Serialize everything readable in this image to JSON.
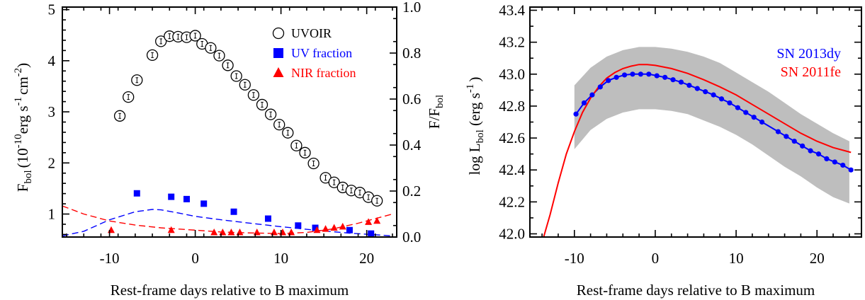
{
  "chart_data": [
    {
      "type": "scatter",
      "xlabel": "Rest-frame days relative to B maximum",
      "ylabel_left": {
        "base": "F",
        "sub": "bol",
        "paren": "(10",
        "exp1": "-10",
        "unit1": "erg s",
        "exp2": "-1",
        "unit2": "cm",
        "exp3": "-2",
        "close": ")"
      },
      "ylabel_right": {
        "base": "F/F",
        "sub": "bol"
      },
      "xlim": [
        -15.5,
        23.5
      ],
      "ylim_left": [
        0.55,
        5.05
      ],
      "ylim_right": [
        0,
        1.0
      ],
      "xticks": [
        -10,
        0,
        10,
        20
      ],
      "xtick_labels": [
        "-10",
        "0",
        "10",
        "20"
      ],
      "yticks_left": [
        1,
        2,
        3,
        4,
        5
      ],
      "ytick_labels_left": [
        "1",
        "2",
        "3",
        "4",
        "5"
      ],
      "yticks_right": [
        0.0,
        0.2,
        0.4,
        0.6,
        0.8,
        1.0
      ],
      "ytick_labels_right": [
        "0.0",
        "0.2",
        "0.4",
        "0.6",
        "0.8",
        "1.0"
      ],
      "legend": {
        "placement": "top-right",
        "items": [
          {
            "label": "UVOIR",
            "marker": "circle",
            "color": "#000000"
          },
          {
            "label": "UV fraction",
            "marker": "square",
            "color": "#0000ff"
          },
          {
            "label": "NIR fraction",
            "marker": "triangle",
            "color": "#ff0000"
          }
        ]
      },
      "series": [
        {
          "name": "UVOIR",
          "axis": "left",
          "marker": "circle-with-errorbar",
          "color": "#000000",
          "x": [
            -8.8,
            -7.8,
            -6.8,
            -5.0,
            -4.0,
            -3.0,
            -2.0,
            -1.0,
            0.0,
            0.8,
            1.8,
            2.8,
            3.8,
            4.8,
            5.8,
            6.8,
            7.8,
            8.8,
            9.8,
            10.8,
            11.8,
            12.8,
            13.8,
            15.2,
            16.2,
            17.2,
            18.2,
            19.2,
            20.2,
            21.2
          ],
          "y": [
            2.92,
            3.29,
            3.62,
            4.11,
            4.38,
            4.48,
            4.47,
            4.46,
            4.49,
            4.33,
            4.25,
            4.1,
            3.91,
            3.7,
            3.53,
            3.33,
            3.14,
            2.95,
            2.75,
            2.59,
            2.34,
            2.2,
            1.99,
            1.71,
            1.62,
            1.52,
            1.46,
            1.42,
            1.33,
            1.26
          ]
        },
        {
          "name": "UV fraction",
          "axis": "right",
          "marker": "square",
          "color": "#0000ff",
          "x": [
            -6.8,
            -2.8,
            -1.0,
            1.0,
            4.5,
            8.5,
            12.0,
            14.0,
            18.0,
            20.5
          ],
          "y": [
            0.19,
            0.175,
            0.165,
            0.145,
            0.11,
            0.08,
            0.05,
            0.04,
            0.03,
            0.015
          ]
        },
        {
          "name": "NIR fraction",
          "axis": "right",
          "marker": "triangle",
          "color": "#ff0000",
          "x": [
            -9.8,
            -2.8,
            2.2,
            3.2,
            4.2,
            5.2,
            7.2,
            9.2,
            10.2,
            11.2,
            14.2,
            15.2,
            16.2,
            17.2,
            20.2,
            21.2
          ],
          "y": [
            0.03,
            0.03,
            0.02,
            0.02,
            0.02,
            0.02,
            0.02,
            0.02,
            0.02,
            0.02,
            0.03,
            0.035,
            0.04,
            0.045,
            0.065,
            0.07
          ]
        },
        {
          "name": "UV fraction model",
          "axis": "right",
          "style": "dashed",
          "color": "#0000ff",
          "x": [
            -15.5,
            -13,
            -10,
            -7,
            -5,
            -4,
            -2,
            0,
            3,
            6,
            10,
            14,
            18,
            21,
            23
          ],
          "y": [
            0.005,
            0.025,
            0.075,
            0.11,
            0.12,
            0.118,
            0.105,
            0.09,
            0.075,
            0.062,
            0.045,
            0.03,
            0.017,
            0.01,
            0.005
          ]
        },
        {
          "name": "NIR fraction model",
          "axis": "right",
          "style": "dashed",
          "color": "#ff0000",
          "x": [
            -15.5,
            -13,
            -10,
            -7,
            -4,
            0,
            3,
            6,
            10,
            13,
            16,
            19,
            21,
            23
          ],
          "y": [
            0.135,
            0.1,
            0.07,
            0.052,
            0.04,
            0.03,
            0.022,
            0.018,
            0.015,
            0.02,
            0.035,
            0.06,
            0.08,
            0.1
          ]
        }
      ]
    },
    {
      "type": "line",
      "xlabel": "Rest-frame days relative to B maximum",
      "ylabel": {
        "pre": "log L",
        "sub": "bol",
        "paren": " (erg s",
        "exp": "-1",
        "close": ")"
      },
      "xlim": [
        -15.5,
        25.5
      ],
      "ylim": [
        41.98,
        43.42
      ],
      "xticks": [
        -10,
        0,
        10,
        20
      ],
      "xtick_labels": [
        "-10",
        "0",
        "10",
        "20"
      ],
      "yticks": [
        42.0,
        42.2,
        42.4,
        42.6,
        42.8,
        43.0,
        43.2,
        43.4
      ],
      "ytick_labels": [
        "42.0",
        "42.2",
        "42.4",
        "42.6",
        "42.8",
        "43.0",
        "43.2",
        "43.4"
      ],
      "legend": {
        "placement": "top-right",
        "items": [
          {
            "label": "SN 2013dy",
            "color": "#0000ff"
          },
          {
            "label": "SN 2011fe",
            "color": "#ff0000"
          }
        ]
      },
      "series": [
        {
          "name": "SN 2013dy",
          "color": "#0000ff",
          "marker": "dot",
          "x": [
            -9.8,
            -8.8,
            -7.8,
            -6.8,
            -5.8,
            -4.8,
            -3.8,
            -2.8,
            -1.8,
            -0.8,
            0.2,
            1.2,
            2.2,
            3.2,
            4.2,
            5.2,
            6.2,
            7.2,
            8.2,
            9.2,
            10.2,
            11.2,
            12.2,
            13.2,
            15.2,
            16.2,
            17.2,
            18.2,
            19.2,
            20.2,
            21.2,
            22.2,
            23.2,
            24.2
          ],
          "y": [
            42.75,
            42.82,
            42.87,
            42.92,
            42.96,
            42.98,
            42.995,
            43.0,
            43.0,
            43.0,
            42.99,
            42.98,
            42.965,
            42.95,
            42.93,
            42.91,
            42.89,
            42.87,
            42.845,
            42.82,
            42.79,
            42.76,
            42.73,
            42.7,
            42.64,
            42.61,
            42.58,
            42.55,
            42.52,
            42.5,
            42.47,
            42.45,
            42.43,
            42.4
          ]
        },
        {
          "name": "SN 2011fe",
          "color": "#ff0000",
          "x": [
            -13.8,
            -13,
            -12,
            -11,
            -10,
            -9,
            -8,
            -7,
            -6,
            -5,
            -4,
            -3,
            -2,
            -1,
            0,
            2,
            4,
            6,
            8,
            10,
            12,
            14,
            16,
            18,
            20,
            22,
            24.2
          ],
          "y": [
            41.97,
            42.12,
            42.32,
            42.5,
            42.64,
            42.76,
            42.85,
            42.92,
            42.975,
            43.01,
            43.035,
            43.05,
            43.06,
            43.06,
            43.055,
            43.035,
            43.005,
            42.965,
            42.92,
            42.87,
            42.81,
            42.75,
            42.69,
            42.63,
            42.58,
            42.54,
            42.51
          ]
        },
        {
          "name": "uncertainty band",
          "style": "band",
          "color": "#bebebe",
          "x": [
            -10,
            -8,
            -6,
            -4,
            -2,
            0,
            2,
            4,
            6,
            8,
            10,
            12,
            14,
            16,
            18,
            20,
            22,
            24
          ],
          "y_upper": [
            42.93,
            43.04,
            43.11,
            43.15,
            43.17,
            43.17,
            43.16,
            43.14,
            43.11,
            43.07,
            43.01,
            42.95,
            42.89,
            42.82,
            42.75,
            42.69,
            42.63,
            42.58
          ],
          "y_lower": [
            42.53,
            42.65,
            42.72,
            42.76,
            42.78,
            42.78,
            42.77,
            42.75,
            42.71,
            42.67,
            42.62,
            42.56,
            42.49,
            42.42,
            42.36,
            42.29,
            42.23,
            42.19
          ]
        }
      ]
    }
  ]
}
